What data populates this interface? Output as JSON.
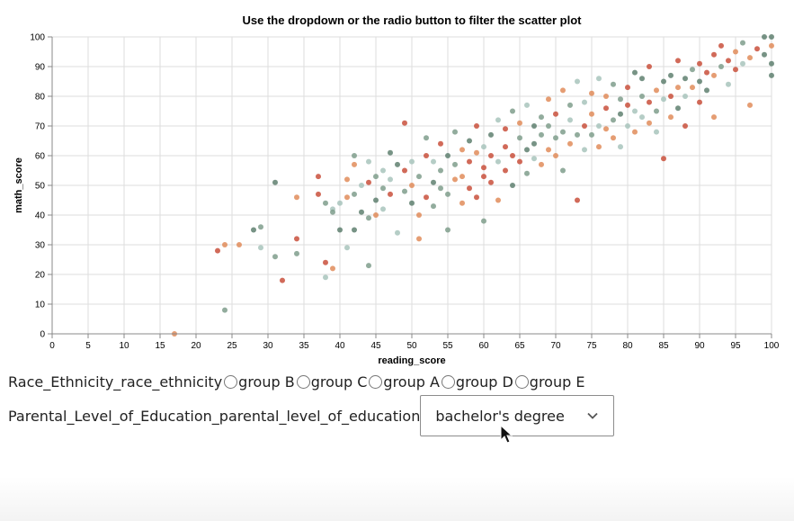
{
  "chart_data": {
    "type": "scatter",
    "title": "Use the dropdown or the radio button to filter the scatter plot",
    "xlabel": "reading_score",
    "ylabel": "math_score",
    "xlim": [
      0,
      100
    ],
    "ylim": [
      0,
      100
    ],
    "x_ticks": [
      "0",
      "5",
      "10",
      "15",
      "20",
      "25",
      "30",
      "35",
      "40",
      "45",
      "50",
      "55",
      "60",
      "65",
      "70",
      "75",
      "80",
      "85",
      "90",
      "95",
      "100"
    ],
    "y_ticks": [
      "0",
      "10",
      "20",
      "30",
      "40",
      "50",
      "60",
      "70",
      "80",
      "90",
      "100"
    ],
    "grid": true,
    "colors": [
      "#c9503c",
      "#e08c5a",
      "#7f9e8c",
      "#a8c4bc",
      "#5f8070"
    ],
    "points": [
      [
        17,
        0
      ],
      [
        23,
        28
      ],
      [
        24,
        30
      ],
      [
        24,
        8
      ],
      [
        26,
        30
      ],
      [
        28,
        35
      ],
      [
        29,
        36
      ],
      [
        29,
        29
      ],
      [
        31,
        26
      ],
      [
        31,
        51
      ],
      [
        32,
        18
      ],
      [
        34,
        32
      ],
      [
        34,
        27
      ],
      [
        34,
        46
      ],
      [
        37,
        47
      ],
      [
        37,
        53
      ],
      [
        38,
        19
      ],
      [
        38,
        24
      ],
      [
        38,
        44
      ],
      [
        39,
        22
      ],
      [
        39,
        42
      ],
      [
        39,
        41
      ],
      [
        40,
        35
      ],
      [
        40,
        44
      ],
      [
        41,
        29
      ],
      [
        41,
        46
      ],
      [
        41,
        52
      ],
      [
        42,
        57
      ],
      [
        42,
        60
      ],
      [
        42,
        35
      ],
      [
        42,
        47
      ],
      [
        43,
        41
      ],
      [
        43,
        50
      ],
      [
        44,
        23
      ],
      [
        44,
        39
      ],
      [
        44,
        51
      ],
      [
        44,
        58
      ],
      [
        45,
        45
      ],
      [
        45,
        40
      ],
      [
        45,
        53
      ],
      [
        46,
        55
      ],
      [
        46,
        49
      ],
      [
        46,
        42
      ],
      [
        47,
        52
      ],
      [
        47,
        47
      ],
      [
        47,
        61
      ],
      [
        48,
        34
      ],
      [
        48,
        57
      ],
      [
        49,
        48
      ],
      [
        49,
        55
      ],
      [
        49,
        71
      ],
      [
        50,
        44
      ],
      [
        50,
        58
      ],
      [
        50,
        50
      ],
      [
        51,
        40
      ],
      [
        51,
        53
      ],
      [
        51,
        32
      ],
      [
        52,
        60
      ],
      [
        52,
        46
      ],
      [
        52,
        66
      ],
      [
        53,
        58
      ],
      [
        53,
        51
      ],
      [
        53,
        43
      ],
      [
        54,
        64
      ],
      [
        54,
        49
      ],
      [
        54,
        55
      ],
      [
        55,
        35
      ],
      [
        55,
        60
      ],
      [
        55,
        47
      ],
      [
        56,
        57
      ],
      [
        56,
        68
      ],
      [
        56,
        52
      ],
      [
        57,
        62
      ],
      [
        57,
        53
      ],
      [
        57,
        44
      ],
      [
        58,
        65
      ],
      [
        58,
        58
      ],
      [
        58,
        49
      ],
      [
        59,
        61
      ],
      [
        59,
        70
      ],
      [
        59,
        46
      ],
      [
        60,
        56
      ],
      [
        60,
        63
      ],
      [
        60,
        53
      ],
      [
        60,
        38
      ],
      [
        61,
        67
      ],
      [
        61,
        60
      ],
      [
        61,
        51
      ],
      [
        62,
        72
      ],
      [
        62,
        58
      ],
      [
        62,
        45
      ],
      [
        63,
        63
      ],
      [
        63,
        69
      ],
      [
        63,
        55
      ],
      [
        64,
        60
      ],
      [
        64,
        75
      ],
      [
        64,
        50
      ],
      [
        65,
        66
      ],
      [
        65,
        58
      ],
      [
        65,
        71
      ],
      [
        66,
        62
      ],
      [
        66,
        54
      ],
      [
        66,
        77
      ],
      [
        67,
        64
      ],
      [
        67,
        70
      ],
      [
        67,
        59
      ],
      [
        68,
        67
      ],
      [
        68,
        73
      ],
      [
        68,
        57
      ],
      [
        69,
        62
      ],
      [
        69,
        70
      ],
      [
        69,
        79
      ],
      [
        70,
        66
      ],
      [
        70,
        60
      ],
      [
        70,
        74
      ],
      [
        71,
        68
      ],
      [
        71,
        82
      ],
      [
        71,
        55
      ],
      [
        72,
        72
      ],
      [
        72,
        64
      ],
      [
        72,
        77
      ],
      [
        73,
        67
      ],
      [
        73,
        85
      ],
      [
        73,
        45
      ],
      [
        74,
        70
      ],
      [
        74,
        62
      ],
      [
        74,
        78
      ],
      [
        75,
        74
      ],
      [
        75,
        67
      ],
      [
        75,
        81
      ],
      [
        76,
        70
      ],
      [
        76,
        86
      ],
      [
        76,
        63
      ],
      [
        77,
        76
      ],
      [
        77,
        69
      ],
      [
        77,
        80
      ],
      [
        78,
        72
      ],
      [
        78,
        66
      ],
      [
        78,
        84
      ],
      [
        79,
        79
      ],
      [
        79,
        74
      ],
      [
        79,
        63
      ],
      [
        80,
        77
      ],
      [
        80,
        83
      ],
      [
        80,
        70
      ],
      [
        81,
        75
      ],
      [
        81,
        88
      ],
      [
        81,
        68
      ],
      [
        82,
        80
      ],
      [
        82,
        73
      ],
      [
        82,
        86
      ],
      [
        83,
        78
      ],
      [
        83,
        71
      ],
      [
        83,
        90
      ],
      [
        84,
        82
      ],
      [
        84,
        75
      ],
      [
        84,
        68
      ],
      [
        85,
        85
      ],
      [
        85,
        79
      ],
      [
        85,
        59
      ],
      [
        86,
        87
      ],
      [
        86,
        80
      ],
      [
        86,
        73
      ],
      [
        87,
        83
      ],
      [
        87,
        92
      ],
      [
        87,
        76
      ],
      [
        88,
        86
      ],
      [
        88,
        80
      ],
      [
        88,
        70
      ],
      [
        89,
        89
      ],
      [
        89,
        83
      ],
      [
        90,
        91
      ],
      [
        90,
        85
      ],
      [
        90,
        78
      ],
      [
        91,
        88
      ],
      [
        91,
        82
      ],
      [
        92,
        94
      ],
      [
        92,
        87
      ],
      [
        92,
        73
      ],
      [
        93,
        90
      ],
      [
        93,
        97
      ],
      [
        94,
        92
      ],
      [
        94,
        84
      ],
      [
        95,
        95
      ],
      [
        95,
        89
      ],
      [
        96,
        98
      ],
      [
        96,
        91
      ],
      [
        97,
        77
      ],
      [
        97,
        93
      ],
      [
        98,
        96
      ],
      [
        99,
        94
      ],
      [
        99,
        100
      ],
      [
        100,
        100
      ],
      [
        100,
        91
      ],
      [
        100,
        87
      ],
      [
        100,
        97
      ]
    ]
  },
  "controls": {
    "radio_label": "Race_Ethnicity_race_ethnicity",
    "radio_options": [
      "group B",
      "group C",
      "group A",
      "group D",
      "group E"
    ],
    "select_label": "Parental_Level_of_Education_parental_level_of_education",
    "select_value": "bachelor's degree"
  }
}
